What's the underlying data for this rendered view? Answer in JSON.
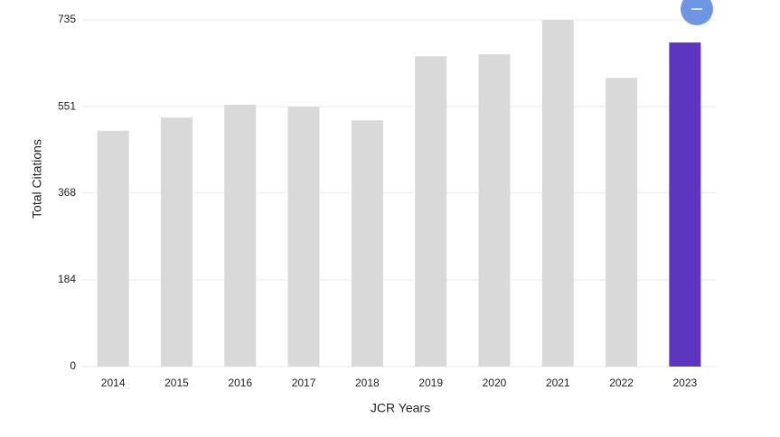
{
  "chart_data": {
    "type": "bar",
    "x_label": "JCR Years",
    "y_label": "Total Citations",
    "categories": [
      "2014",
      "2015",
      "2016",
      "2017",
      "2018",
      "2019",
      "2020",
      "2021",
      "2022",
      "2023"
    ],
    "values": [
      500,
      528,
      555,
      551,
      522,
      658,
      662,
      735,
      612,
      687
    ],
    "colors": [
      "#d9d9d9",
      "#d9d9d9",
      "#d9d9d9",
      "#d9d9d9",
      "#d9d9d9",
      "#d9d9d9",
      "#d9d9d9",
      "#d9d9d9",
      "#d9d9d9",
      "#5c35c0"
    ],
    "ylim": [
      0,
      735
    ],
    "yticks": [
      0,
      184,
      368,
      551,
      735
    ],
    "grid": true
  }
}
